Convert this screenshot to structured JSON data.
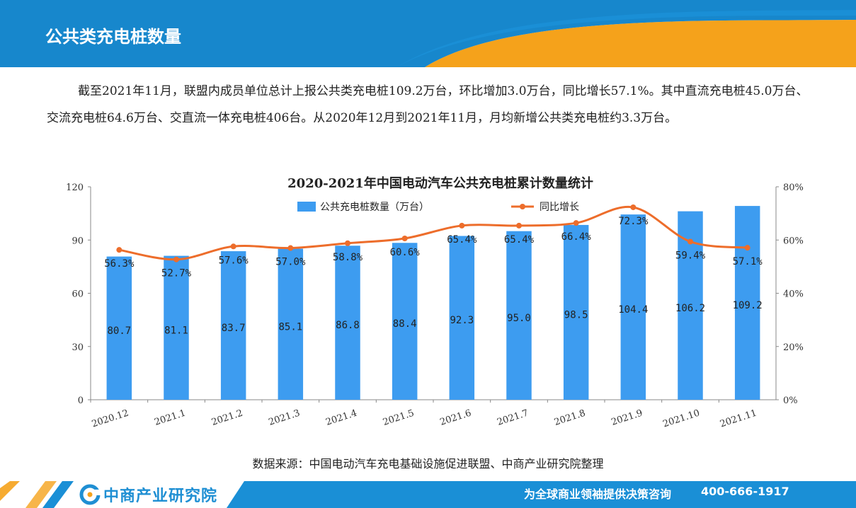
{
  "header": {
    "title": "公共类充电桩数量"
  },
  "paragraph": "截至2021年11月，联盟内成员单位总计上报公共类充电桩109.2万台，环比增加3.0万台，同比增长57.1%。其中直流充电桩45.0万台、交流充电桩64.6万台、交直流一体充电桩406台。从2020年12月到2021年11月，月均新增公共类充电桩约3.3万台。",
  "chart_data": {
    "type": "bar",
    "title": "2020-2021年中国电动汽车公共充电桩累计数量统计",
    "categories": [
      "2020.12",
      "2021.1",
      "2021.2",
      "2021.3",
      "2021.4",
      "2021.5",
      "2021.6",
      "2021.7",
      "2021.8",
      "2021.9",
      "2021.10",
      "2021.11"
    ],
    "series": [
      {
        "name": "公共充电桩数量（万台）",
        "type": "bar",
        "axis": "left",
        "color": "#3d9cf0",
        "values": [
          80.7,
          81.1,
          83.7,
          85.1,
          86.8,
          88.4,
          92.3,
          95.0,
          98.5,
          104.4,
          106.2,
          109.2
        ],
        "labels": [
          "80.7",
          "81.1",
          "83.7",
          "85.1",
          "86.8",
          "88.4",
          "92.3",
          "95.0",
          "98.5",
          "104.4",
          "106.2",
          "109.2"
        ]
      },
      {
        "name": "同比增长",
        "type": "line",
        "axis": "right",
        "color": "#ed6d2b",
        "values": [
          56.3,
          52.7,
          57.6,
          57.0,
          58.8,
          60.6,
          65.4,
          65.4,
          66.4,
          72.3,
          59.4,
          57.1
        ],
        "labels": [
          "56.3%",
          "52.7%",
          "57.6%",
          "57.0%",
          "58.8%",
          "60.6%",
          "65.4%",
          "65.4%",
          "66.4%",
          "72.3%",
          "59.4%",
          "57.1%"
        ]
      }
    ],
    "y_left": {
      "min": 0,
      "max": 120,
      "ticks": [
        "0",
        "30",
        "60",
        "90",
        "120"
      ]
    },
    "y_right": {
      "min": 0,
      "max": 80,
      "ticks": [
        "0%",
        "20%",
        "40%",
        "60%",
        "80%"
      ]
    },
    "legend_position": "top",
    "grid": false
  },
  "source": "数据来源：中国电动汽车充电基础设施促进联盟、中商产业研究院整理",
  "footer": {
    "logo_text": "中商产业研究院",
    "slogan": "为全球商业领袖提供决策咨询",
    "phone": "400-666-1917",
    "brand_blue": "#1a8fd6",
    "brand_orange": "#f5a21b"
  }
}
